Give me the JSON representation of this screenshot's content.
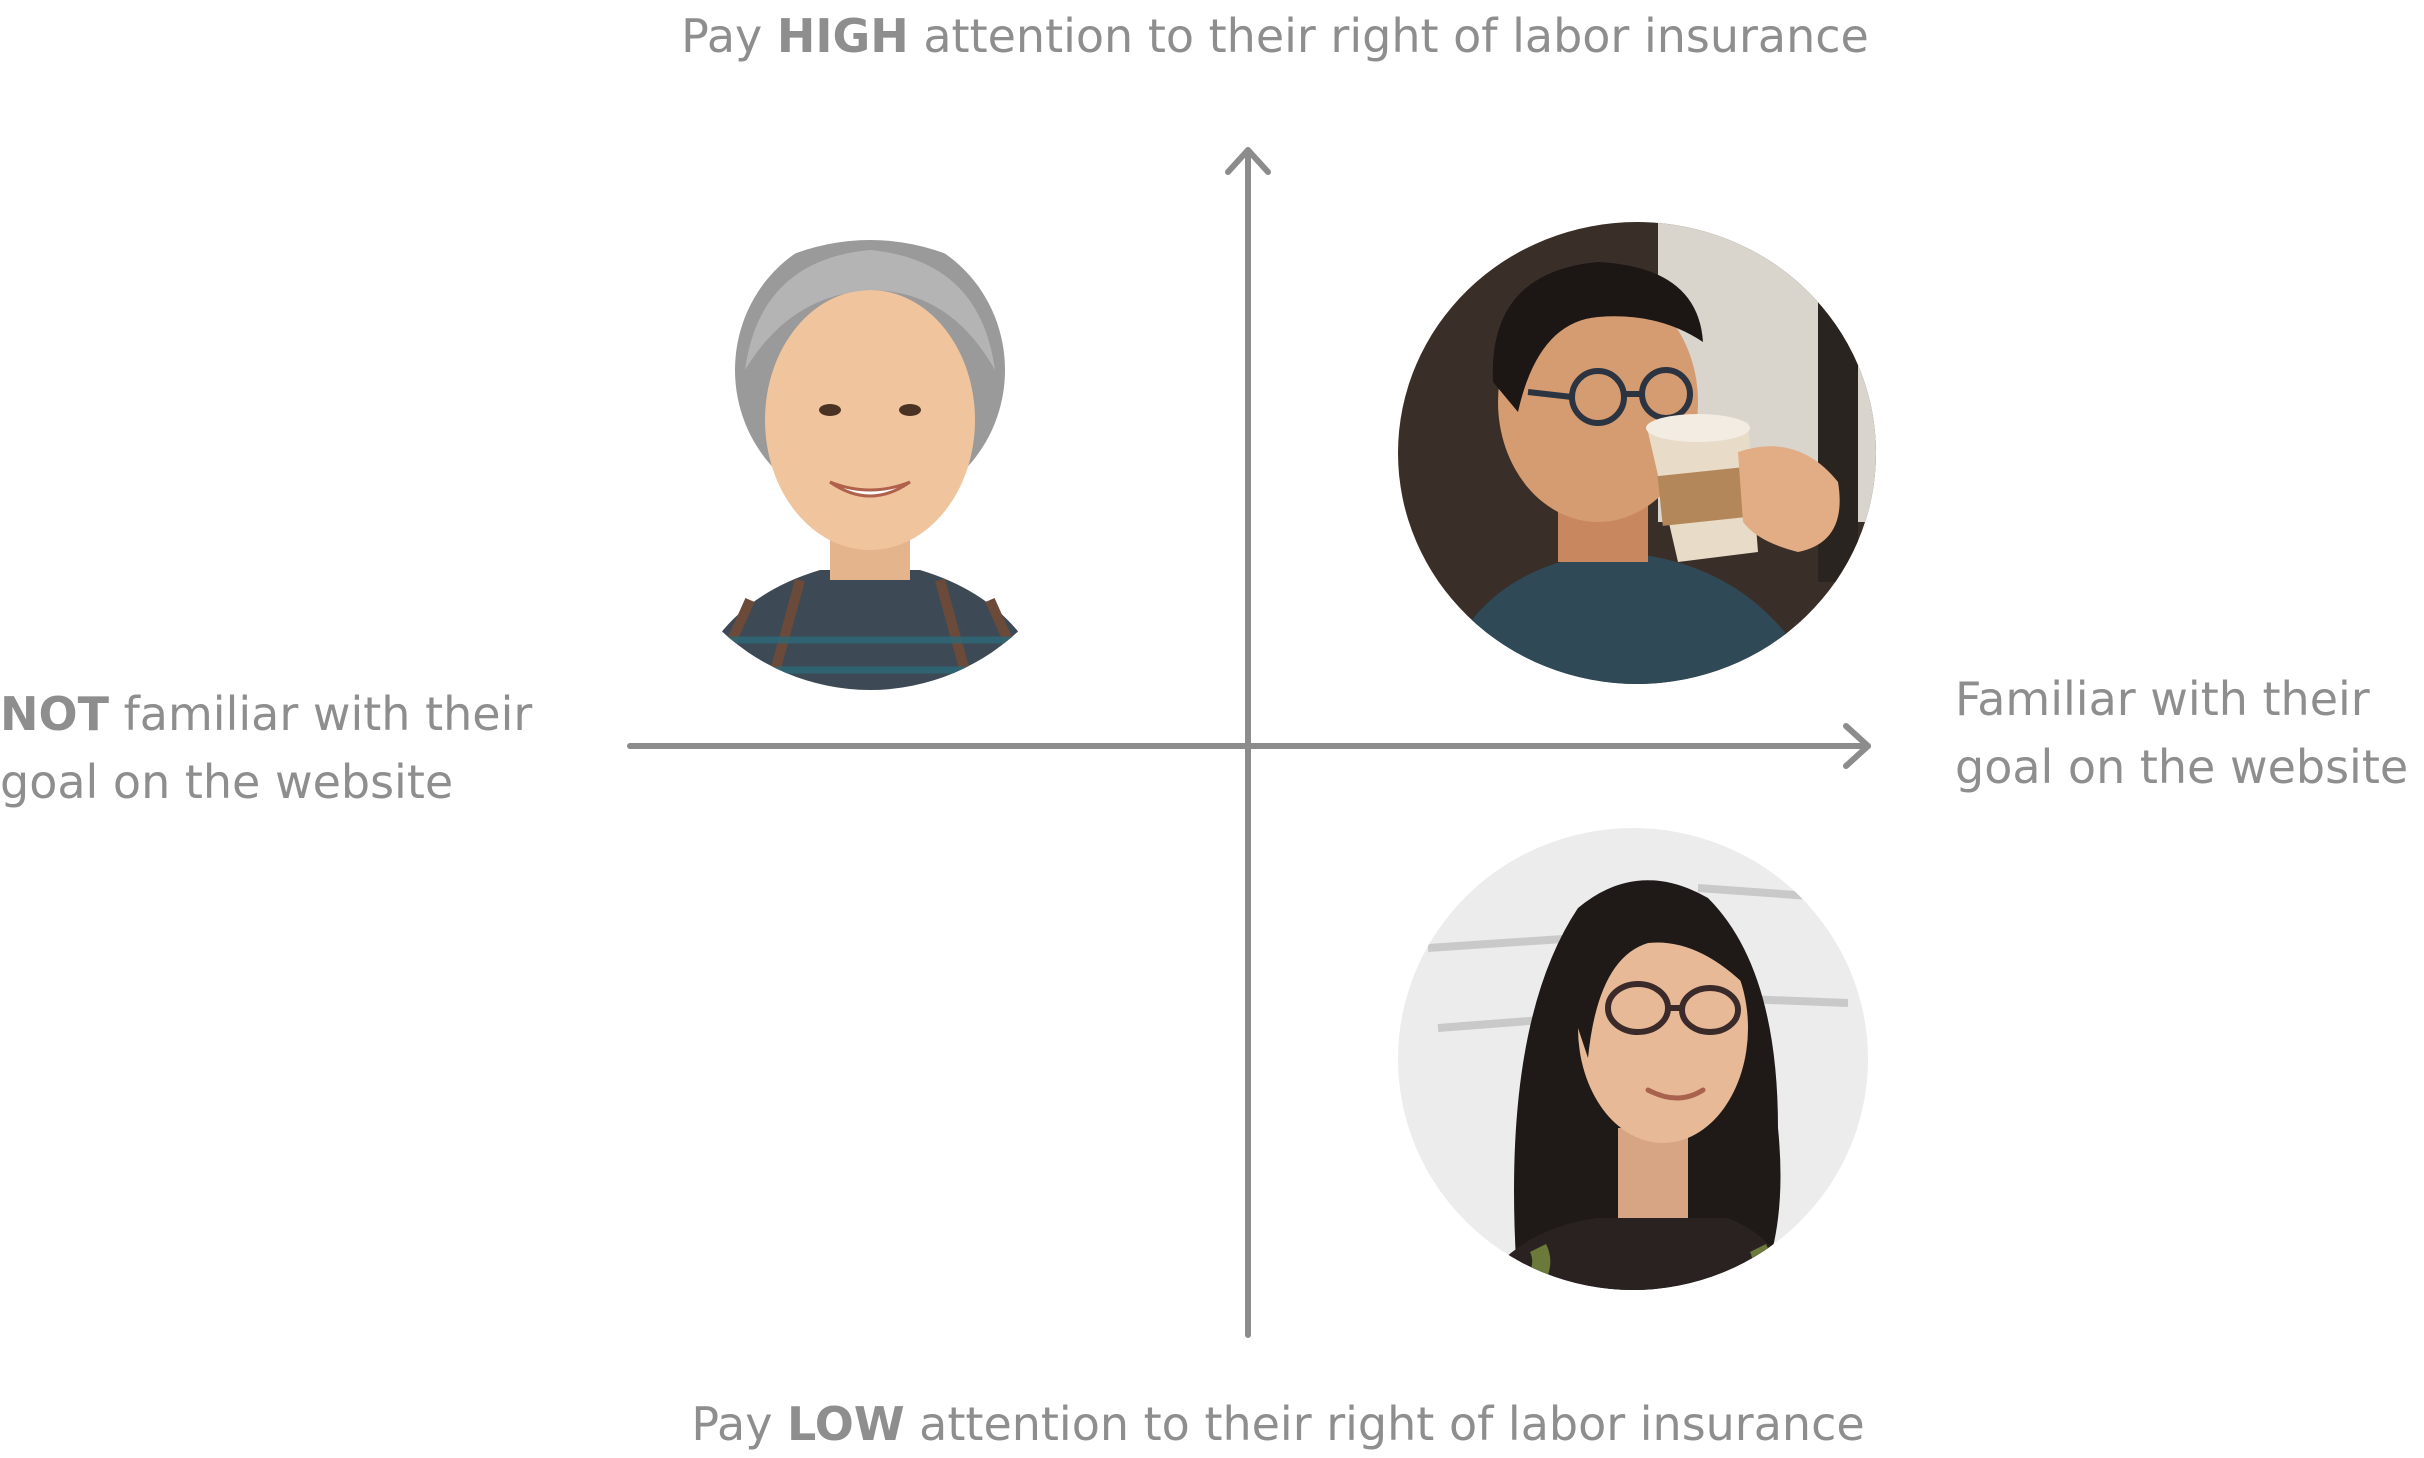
{
  "labels": {
    "top": {
      "prefix": "Pay ",
      "emphasis": "HIGH",
      "suffix": " attention to their right of labor insurance"
    },
    "bottom": {
      "prefix": "Pay ",
      "emphasis": "LOW",
      "suffix": " attention to their right of labor insurance"
    },
    "left": {
      "emphasis": "NOT",
      "line1_suffix": " familiar with their",
      "line2": "goal on the website"
    },
    "right": {
      "line1": "Familiar with their",
      "line2": "goal on the website"
    }
  },
  "personas": [
    {
      "quadrant": "top-left",
      "description": "older woman with gray hair, plaid shirt"
    },
    {
      "quadrant": "top-right",
      "description": "man with glasses drinking coffee"
    },
    {
      "quadrant": "bottom-right",
      "description": "woman with long dark hair and glasses"
    }
  ],
  "colors": {
    "axis": "#8c8c8c",
    "text": "#8e8e8e"
  }
}
